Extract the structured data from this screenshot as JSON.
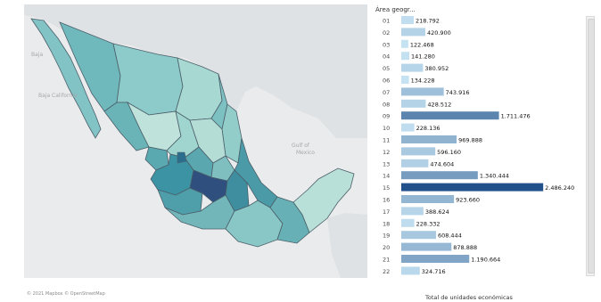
{
  "map": {
    "sea_labels": [
      "Baja",
      "Gulf of",
      "Baja California",
      "Mexico"
    ],
    "attribution": "© 2021 Mapbox © OpenStreetMap"
  },
  "chart_data": {
    "type": "bar",
    "orientation": "horizontal",
    "title": "Área geogr...",
    "xlabel": "Total de unidades económicas",
    "categories": [
      "01",
      "02",
      "03",
      "04",
      "05",
      "06",
      "07",
      "08",
      "09",
      "10",
      "11",
      "12",
      "13",
      "14",
      "15",
      "16",
      "17",
      "18",
      "19",
      "20",
      "21",
      "22"
    ],
    "values": [
      218792,
      420900,
      122468,
      141280,
      380952,
      134228,
      743916,
      428512,
      1711476,
      228136,
      969888,
      596160,
      474604,
      1340444,
      2486240,
      923660,
      388624,
      228332,
      608444,
      878888,
      1190664,
      324716
    ],
    "value_labels": [
      "218.792",
      "420.900",
      "122.468",
      "141.280",
      "380.952",
      "134.228",
      "743.916",
      "428.512",
      "1.711.476",
      "228.136",
      "969.888",
      "596.160",
      "474.604",
      "1.340.444",
      "2.486.240",
      "923.660",
      "388.624",
      "228.332",
      "608.444",
      "878.888",
      "1.190.664",
      "324.716"
    ],
    "x_ticks": [
      0,
      600000,
      1000000,
      1800000,
      2000000,
      2600000,
      3000000
    ],
    "x_tick_labels": [
      "0K",
      "600K",
      "1000K",
      "1800K",
      "2000K",
      "2600K",
      "3000K"
    ],
    "xlim": [
      0,
      3000000
    ],
    "colors": {
      "low": "#c5e2f2",
      "high": "#21508a"
    },
    "grid": false
  }
}
